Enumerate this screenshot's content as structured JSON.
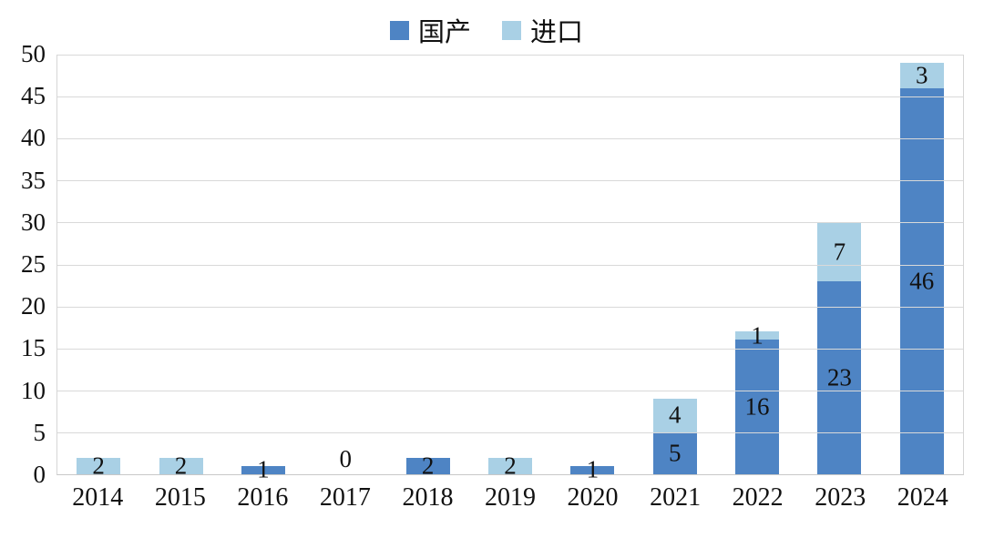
{
  "chart_data": {
    "type": "bar",
    "stacked": true,
    "title": "",
    "xlabel": "",
    "ylabel": "",
    "categories": [
      "2014",
      "2015",
      "2016",
      "2017",
      "2018",
      "2019",
      "2020",
      "2021",
      "2022",
      "2023",
      "2024"
    ],
    "series": [
      {
        "name": "国产",
        "color": "#4E84C4",
        "values": [
          0,
          0,
          1,
          0,
          2,
          0,
          1,
          5,
          16,
          23,
          46
        ]
      },
      {
        "name": "进口",
        "color": "#A9D0E5",
        "values": [
          2,
          2,
          0,
          0,
          0,
          2,
          0,
          4,
          1,
          7,
          3
        ]
      }
    ],
    "totals": [
      2,
      2,
      1,
      0,
      2,
      2,
      1,
      9,
      17,
      30,
      49
    ],
    "zero_label_category": "2017",
    "zero_label_text": "0",
    "ylim": [
      0,
      50
    ],
    "y_ticks": [
      0,
      5,
      10,
      15,
      20,
      25,
      30,
      35,
      40,
      45,
      50
    ],
    "grid": true,
    "gridline_color": "#d9d9d9",
    "legend_position": "top",
    "label_color": "#111111"
  }
}
